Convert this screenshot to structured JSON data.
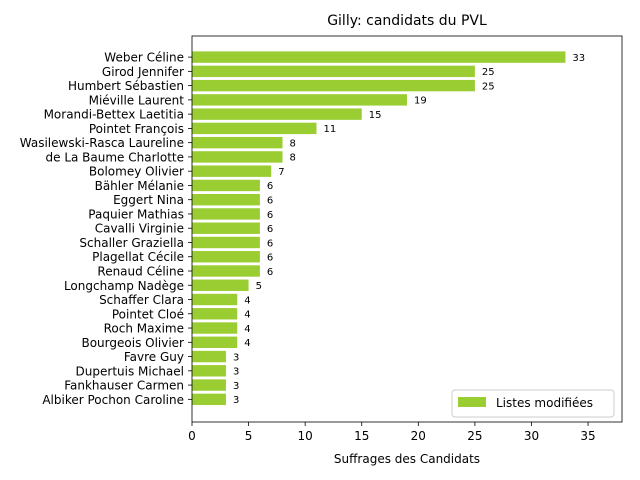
{
  "chart_data": {
    "type": "bar",
    "orientation": "horizontal",
    "title": "Gilly: candidats du PVL",
    "xlabel": "Suffrages des Candidats",
    "ylabel": "",
    "xlim": [
      0,
      38
    ],
    "xticks": [
      0,
      5,
      10,
      15,
      20,
      25,
      30,
      35
    ],
    "grid": false,
    "legend_position": "bottom-right",
    "bar_color": "#9acd32",
    "categories": [
      "Weber Céline",
      "Girod Jennifer",
      "Humbert Sébastien",
      "Miéville Laurent",
      "Morandi-Bettex Laetitia",
      "Pointet François",
      "Wasilewski-Rasca Laureline",
      "de La Baume Charlotte",
      "Bolomey Olivier",
      "Bähler Mélanie",
      "Eggert Nina",
      "Paquier Mathias",
      "Cavalli Virginie",
      "Schaller Graziella",
      "Plagellat Cécile",
      "Renaud Céline",
      "Longchamp Nadège",
      "Schaffer Clara",
      "Pointet Cloé",
      "Roch Maxime",
      "Bourgeois Olivier",
      "Favre Guy",
      "Dupertuis Michael",
      "Fankhauser Carmen",
      "Albiker Pochon Caroline"
    ],
    "series": [
      {
        "name": "Listes modifiées",
        "values": [
          33,
          25,
          25,
          19,
          15,
          11,
          8,
          8,
          7,
          6,
          6,
          6,
          6,
          6,
          6,
          6,
          5,
          4,
          4,
          4,
          4,
          3,
          3,
          3,
          3
        ]
      }
    ]
  }
}
